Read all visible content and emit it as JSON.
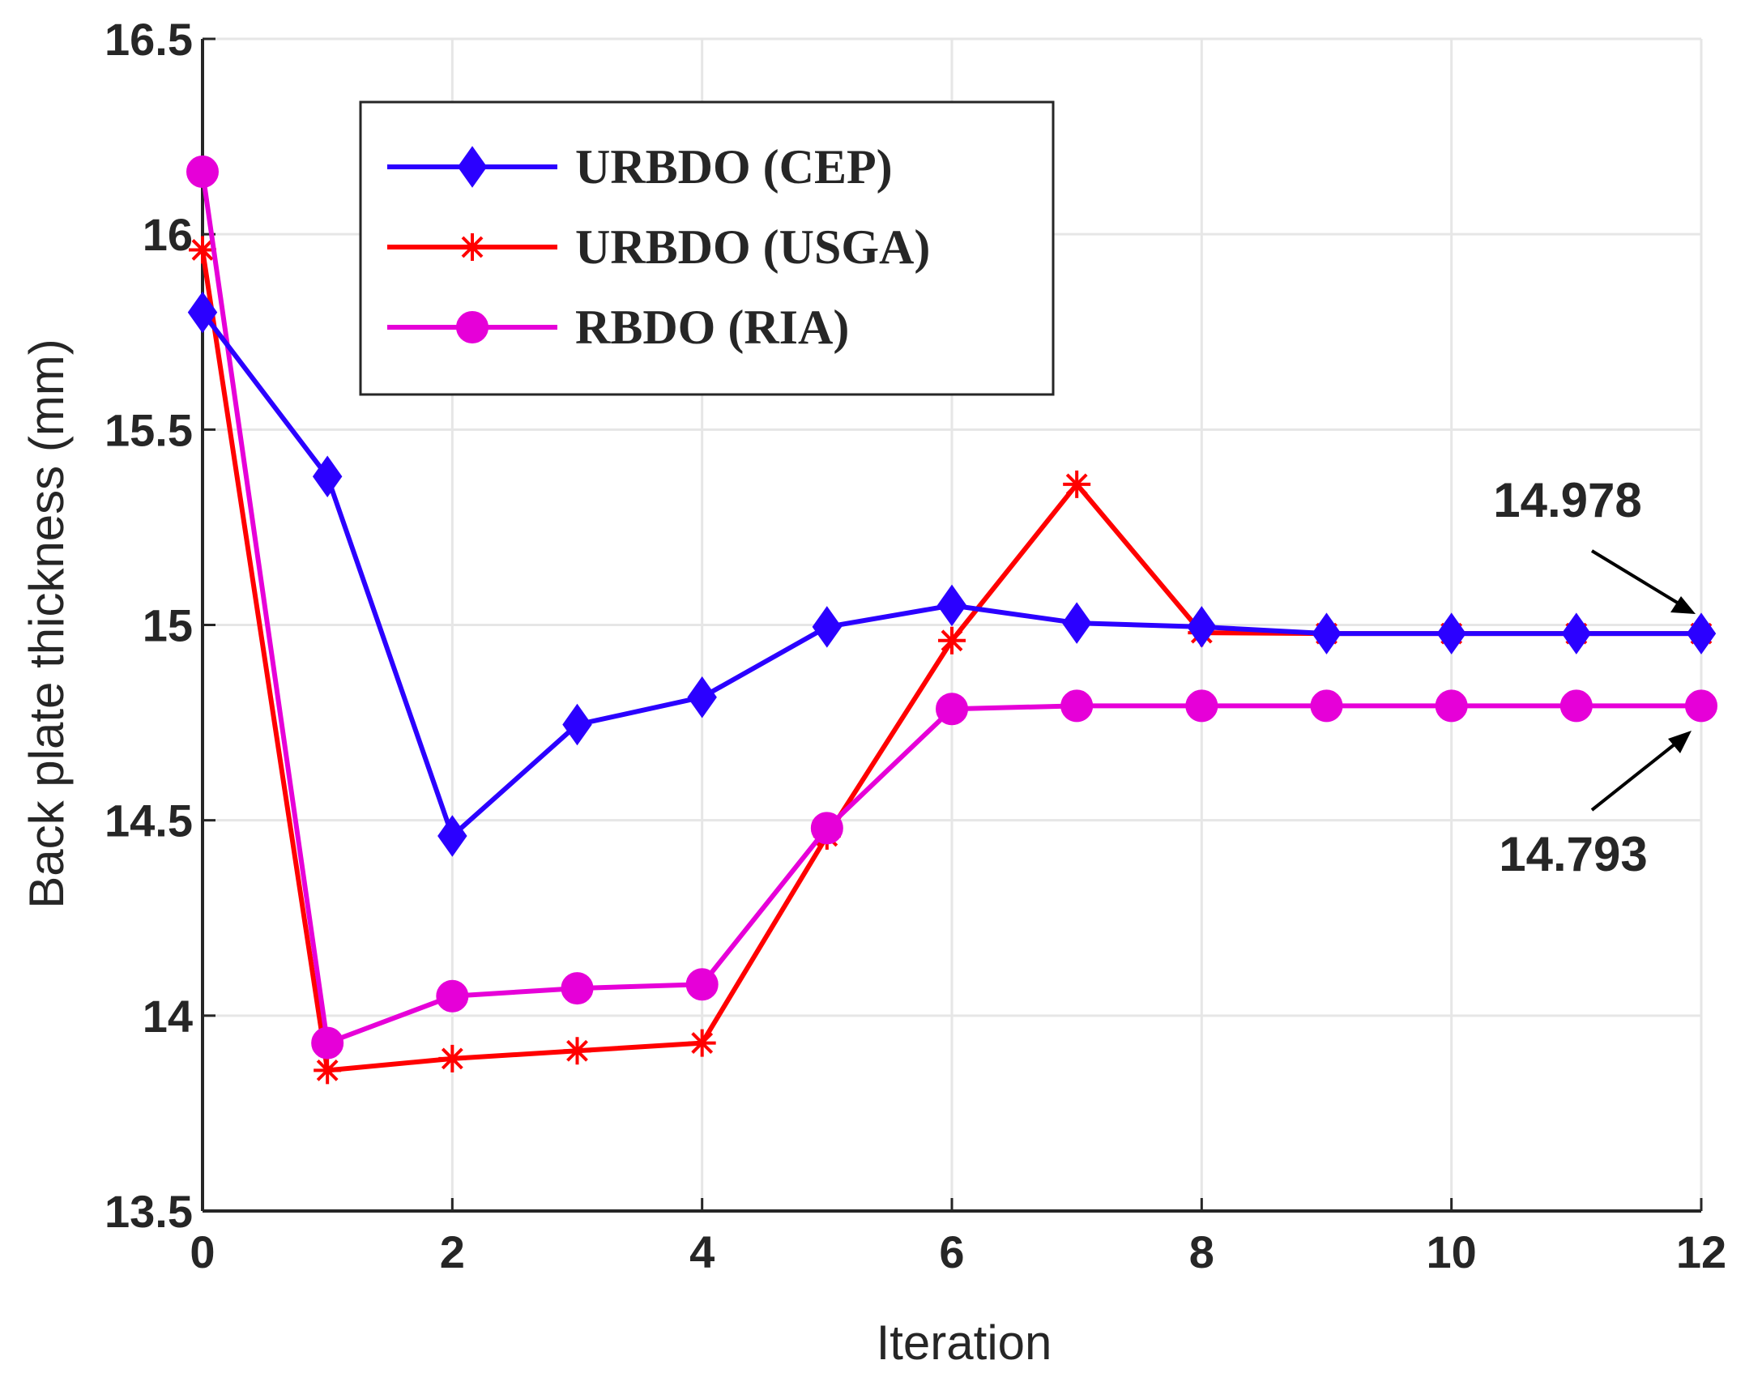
{
  "chart_data": {
    "type": "line",
    "title": "",
    "xlabel": "Iteration",
    "ylabel": "Back plate thickness (mm)",
    "xlim": [
      0,
      12
    ],
    "ylim": [
      13.5,
      16.5
    ],
    "xticks": [
      0,
      2,
      4,
      6,
      8,
      10,
      12
    ],
    "xtick_labels": [
      "0",
      "2",
      "4",
      "6",
      "8",
      "10",
      "12"
    ],
    "yticks": [
      13.5,
      14,
      14.5,
      15,
      15.5,
      16,
      16.5
    ],
    "ytick_labels": [
      "13.5",
      "14",
      "14.5",
      "15",
      "15.5",
      "16",
      "16.5"
    ],
    "grid": true,
    "legend_position": "top-left",
    "x": [
      0,
      1,
      2,
      3,
      4,
      5,
      6,
      7,
      8,
      9,
      10,
      11,
      12
    ],
    "series": [
      {
        "name": "URBDO (CEP)",
        "color": "#2b00ff",
        "marker": "diamond",
        "values": [
          15.8,
          15.38,
          14.46,
          14.745,
          14.815,
          14.995,
          15.05,
          15.005,
          14.995,
          14.978,
          14.978,
          14.978,
          14.978
        ]
      },
      {
        "name": "URBDO (USGA)",
        "color": "#ff0000",
        "marker": "asterisk",
        "values": [
          15.96,
          13.86,
          13.89,
          13.91,
          13.93,
          14.46,
          14.96,
          15.36,
          14.98,
          14.978,
          14.978,
          14.978,
          14.978
        ]
      },
      {
        "name": "RBDO (RIA)",
        "color": "#e600d8",
        "marker": "circle",
        "values": [
          16.16,
          13.93,
          14.05,
          14.07,
          14.08,
          14.48,
          14.785,
          14.793,
          14.793,
          14.793,
          14.793,
          14.793,
          14.793
        ]
      }
    ],
    "annotations": [
      {
        "text": "14.978",
        "x": 12,
        "y": 14.978,
        "placement": "above-left"
      },
      {
        "text": "14.793",
        "x": 12,
        "y": 14.793,
        "placement": "below-left"
      }
    ]
  }
}
